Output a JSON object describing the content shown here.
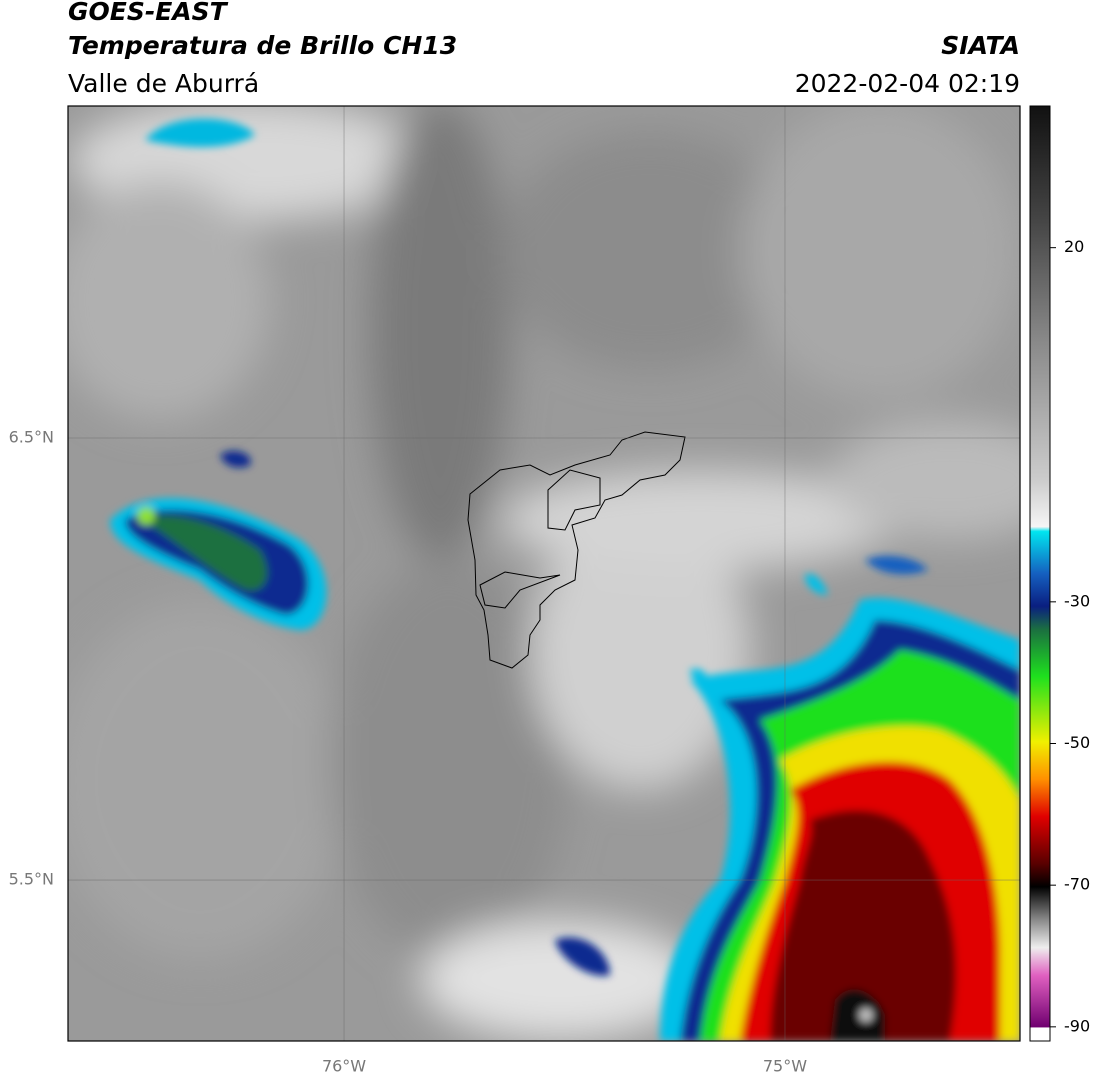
{
  "header": {
    "title": "GOES-EAST",
    "subtitle": "Temperatura de Brillo CH13",
    "source": "SIATA",
    "region": "Valle de Aburrá",
    "datetime": "2022-02-04 02:19"
  },
  "map": {
    "lat_lim": [
      5.136,
      7.251
    ],
    "lon_lim": [
      -76.626,
      -74.467
    ],
    "lat_ticks": [
      {
        "value": 6.5,
        "label": "6.5°N"
      },
      {
        "value": 5.5,
        "label": "5.5°N"
      }
    ],
    "lon_ticks": [
      {
        "value": -76,
        "label": "76°W"
      },
      {
        "value": -75,
        "label": "75°W"
      }
    ],
    "colorbar": {
      "lim": [
        -92,
        40
      ],
      "ticks": [
        20,
        -30,
        -50,
        -70,
        -90
      ]
    }
  }
}
